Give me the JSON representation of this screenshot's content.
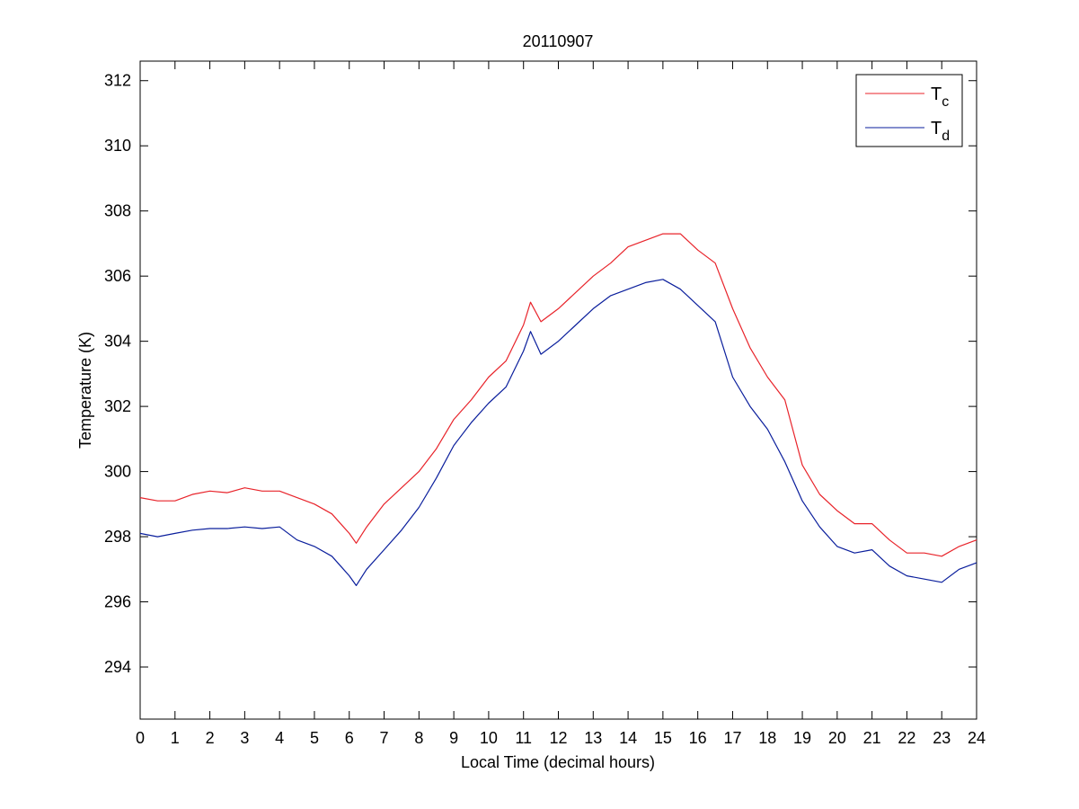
{
  "chart_data": {
    "type": "line",
    "title": "20110907",
    "xlabel": "Local Time (decimal hours)",
    "ylabel": "Temperature (K)",
    "xlim": [
      0,
      24
    ],
    "ylim": [
      292.4,
      312.6
    ],
    "x_ticks": [
      0,
      1,
      2,
      3,
      4,
      5,
      6,
      7,
      8,
      9,
      10,
      11,
      12,
      13,
      14,
      15,
      16,
      17,
      18,
      19,
      20,
      21,
      22,
      23,
      24
    ],
    "y_ticks": [
      294,
      296,
      298,
      300,
      302,
      304,
      306,
      308,
      310,
      312
    ],
    "grid": false,
    "legend_position": "top-right",
    "x": [
      0,
      0.5,
      1,
      1.5,
      2,
      2.5,
      3,
      3.5,
      4,
      4.5,
      5,
      5.5,
      6,
      6.2,
      6.5,
      7,
      7.5,
      8,
      8.5,
      9,
      9.5,
      10,
      10.5,
      11,
      11.2,
      11.5,
      12,
      12.5,
      13,
      13.5,
      14,
      14.5,
      15,
      15.5,
      16,
      16.5,
      17,
      17.5,
      18,
      18.5,
      19,
      19.5,
      20,
      20.5,
      21,
      21.5,
      22,
      22.5,
      23,
      23.5,
      24
    ],
    "series": [
      {
        "name": "T",
        "subscript": "c",
        "color": "#e8232a",
        "values": [
          299.2,
          299.1,
          299.1,
          299.3,
          299.4,
          299.35,
          299.5,
          299.4,
          299.4,
          299.2,
          299.0,
          298.7,
          298.1,
          297.8,
          298.3,
          299.0,
          299.5,
          300.0,
          300.7,
          301.6,
          302.2,
          302.9,
          303.4,
          304.5,
          305.2,
          304.6,
          305.0,
          305.5,
          306.0,
          306.4,
          306.9,
          307.1,
          307.3,
          307.3,
          306.8,
          306.4,
          305.0,
          303.8,
          302.9,
          302.2,
          300.2,
          299.3,
          298.8,
          298.4,
          298.4,
          297.9,
          297.5,
          297.5,
          297.4,
          297.7,
          297.9
        ]
      },
      {
        "name": "T",
        "subscript": "d",
        "color": "#0a1e9c",
        "values": [
          298.1,
          298.0,
          298.1,
          298.2,
          298.25,
          298.25,
          298.3,
          298.25,
          298.3,
          297.9,
          297.7,
          297.4,
          296.8,
          296.5,
          297.0,
          297.6,
          298.2,
          298.9,
          299.8,
          300.8,
          301.5,
          302.1,
          302.6,
          303.7,
          304.3,
          303.6,
          304.0,
          304.5,
          305.0,
          305.4,
          305.6,
          305.8,
          305.9,
          305.6,
          305.1,
          304.6,
          302.9,
          302.0,
          301.3,
          300.3,
          299.1,
          298.3,
          297.7,
          297.5,
          297.6,
          297.1,
          296.8,
          296.7,
          296.6,
          297.0,
          297.2
        ]
      }
    ],
    "colors": {
      "axes": "#000000",
      "background": "#ffffff"
    }
  }
}
